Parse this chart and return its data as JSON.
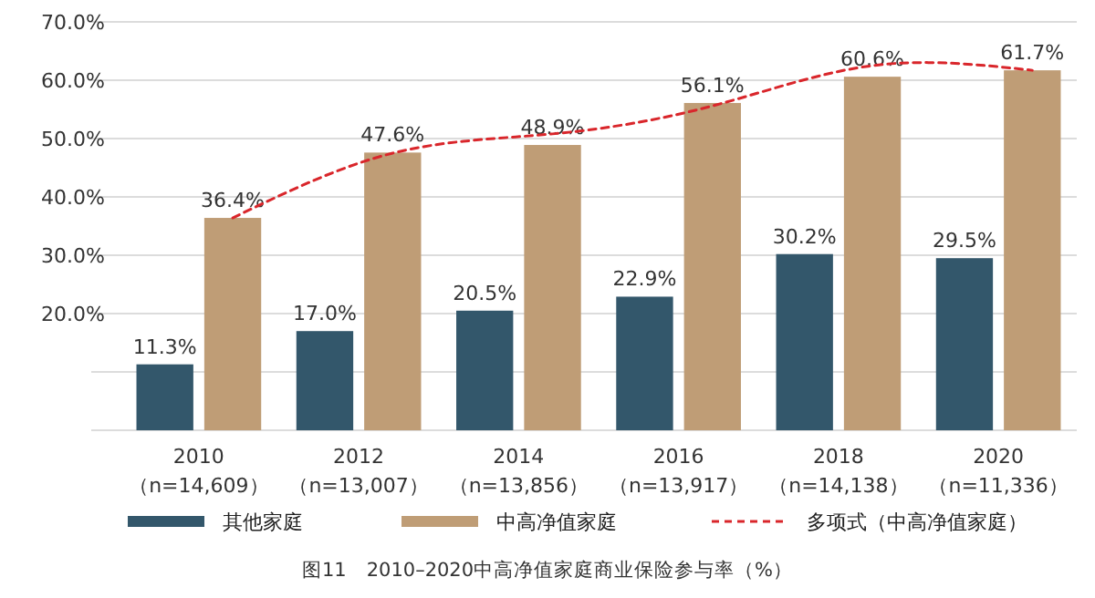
{
  "chart_data": {
    "type": "bar",
    "title": "图11　2010–2020中高净值家庭商业保险参与率（%）",
    "categories": [
      "2010\n（n=14,609）",
      "2012\n（n=13,007）",
      "2014\n（n=13,856）",
      "2016\n（n=13,917）",
      "2018\n（n=14,138）",
      "2020\n（n=11,336）"
    ],
    "series": [
      {
        "name": "其他家庭",
        "color": "#33576b",
        "values": [
          11.3,
          17.0,
          20.5,
          22.9,
          30.2,
          29.5
        ],
        "value_labels": [
          "11.3%",
          "17.0%",
          "20.5%",
          "22.9%",
          "30.2%",
          "29.5%"
        ]
      },
      {
        "name": "中高净值家庭",
        "color": "#bf9d76",
        "values": [
          36.4,
          47.6,
          48.9,
          56.1,
          60.6,
          61.7
        ],
        "value_labels": [
          "36.4%",
          "47.6%",
          "48.9%",
          "56.1%",
          "60.6%",
          "61.7%"
        ]
      },
      {
        "name": "多项式（中高净值家庭）",
        "type": "line",
        "color": "#d9262b",
        "line_style": "dashed",
        "values": [
          36.4,
          47.5,
          50.8,
          55.6,
          62.5,
          61.7
        ]
      }
    ],
    "ylim": [
      0,
      70
    ],
    "yticks": [
      {
        "value": 0,
        "label": null
      },
      {
        "value": 10,
        "label": null
      },
      {
        "value": 20,
        "label": "20.0%"
      },
      {
        "value": 30,
        "label": "30.0%"
      },
      {
        "value": 40,
        "label": "40.0%"
      },
      {
        "value": 50,
        "label": "50.0%"
      },
      {
        "value": 60,
        "label": "60.0%"
      },
      {
        "value": 70,
        "label": "70.0%"
      }
    ],
    "grid": "y",
    "legend": "bottom"
  }
}
